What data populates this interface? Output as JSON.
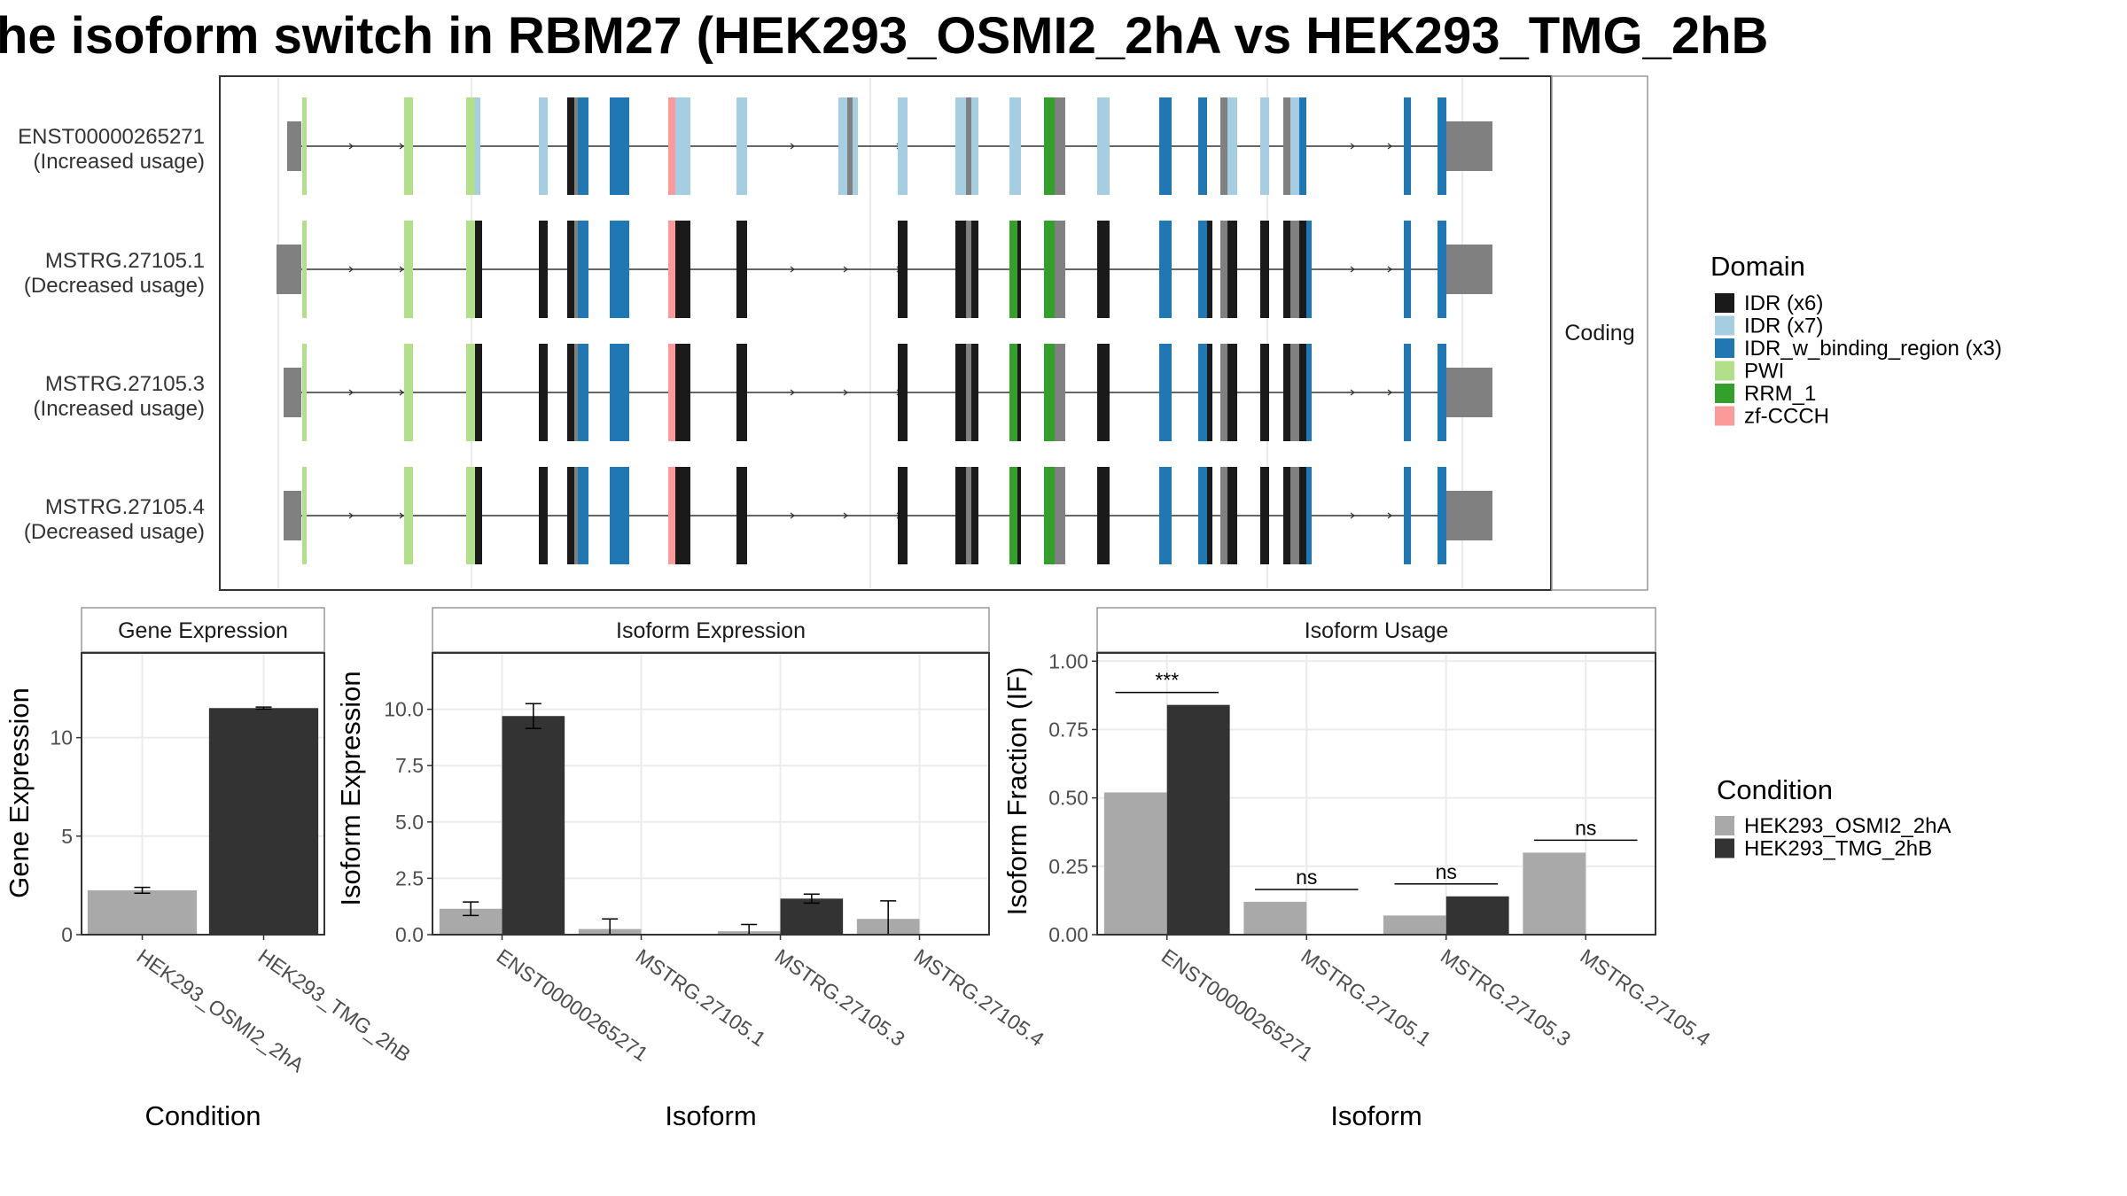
{
  "title": "he isoform switch in RBM27 (HEK293_OSMI2_2hA vs HEK293_TMG_2hB",
  "structure_panel": {
    "strip_label": "Coding",
    "isoforms": [
      {
        "id": "ENST00000265271",
        "usage": "(Increased usage)"
      },
      {
        "id": "MSTRG.27105.1",
        "usage": "(Decreased usage)"
      },
      {
        "id": "MSTRG.27105.3",
        "usage": "(Increased usage)"
      },
      {
        "id": "MSTRG.27105.4",
        "usage": "(Decreased usage)"
      }
    ]
  },
  "domain_legend": {
    "title": "Domain",
    "items": [
      {
        "label": "IDR (x6)",
        "color": "#1a1a1a"
      },
      {
        "label": "IDR (x7)",
        "color": "#a6cee3"
      },
      {
        "label": "IDR_w_binding_region (x3)",
        "color": "#1f78b4"
      },
      {
        "label": "PWI",
        "color": "#b2df8a"
      },
      {
        "label": "RRM_1",
        "color": "#33a02c"
      },
      {
        "label": "zf-CCCH",
        "color": "#fb9a99"
      }
    ]
  },
  "condition_legend": {
    "title": "Condition",
    "items": [
      {
        "label": "HEK293_OSMI2_2hA",
        "color": "#a9a9a9"
      },
      {
        "label": "HEK293_TMG_2hB",
        "color": "#333333"
      }
    ]
  },
  "chart_data": [
    {
      "type": "bar",
      "title": "Gene Expression",
      "xlabel": "Condition",
      "ylabel": "Gene Expression",
      "ylim": [
        0,
        14.3
      ],
      "yticks": [
        0,
        5,
        10
      ],
      "categories": [
        "HEK293_OSMI2_2hA",
        "HEK293_TMG_2hB"
      ],
      "values": [
        2.25,
        11.5
      ],
      "errors": [
        0.15,
        0.05
      ]
    },
    {
      "type": "bar",
      "title": "Isoform Expression",
      "xlabel": "Isoform",
      "ylabel": "Isoform Expression",
      "ylim": [
        0,
        12.5
      ],
      "yticks": [
        "0.0",
        "2.5",
        "5.0",
        "7.5",
        "10.0"
      ],
      "categories": [
        "ENST00000265271",
        "MSTRG.27105.1",
        "MSTRG.27105.3",
        "MSTRG.27105.4"
      ],
      "series": [
        {
          "name": "HEK293_OSMI2_2hA",
          "values": [
            1.15,
            0.25,
            0.15,
            0.7
          ],
          "errors": [
            0.3,
            0.45,
            0.3,
            0.8
          ]
        },
        {
          "name": "HEK293_TMG_2hB",
          "values": [
            9.7,
            0.0,
            1.6,
            0.0
          ],
          "errors": [
            0.55,
            0.0,
            0.2,
            0.0
          ]
        }
      ]
    },
    {
      "type": "bar",
      "title": "Isoform Usage",
      "xlabel": "Isoform",
      "ylabel": "Isoform Fraction (IF)",
      "ylim": [
        0,
        1.03
      ],
      "yticks": [
        "0.00",
        "0.25",
        "0.50",
        "0.75",
        "1.00"
      ],
      "categories": [
        "ENST00000265271",
        "MSTRG.27105.1",
        "MSTRG.27105.3",
        "MSTRG.27105.4"
      ],
      "series": [
        {
          "name": "HEK293_OSMI2_2hA",
          "values": [
            0.52,
            0.12,
            0.07,
            0.3
          ]
        },
        {
          "name": "HEK293_TMG_2hB",
          "values": [
            0.84,
            0.0,
            0.14,
            0.0
          ]
        }
      ],
      "significance": [
        "***",
        "ns",
        "ns",
        "ns"
      ]
    }
  ]
}
